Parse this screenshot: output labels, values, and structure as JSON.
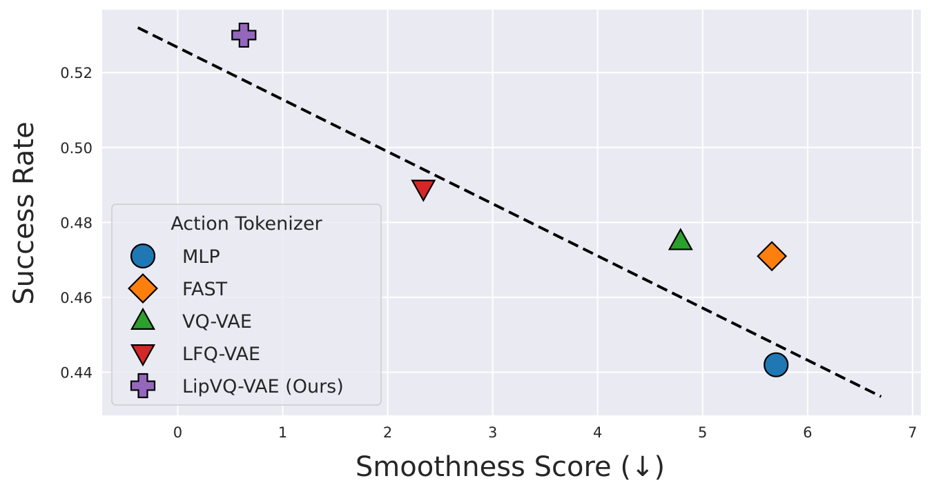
{
  "chart_data": {
    "type": "scatter",
    "title": "",
    "xlabel": "Smoothness Score (↓)",
    "ylabel": "Success Rate",
    "xlim": [
      -0.72,
      7.08
    ],
    "ylim": [
      0.4285,
      0.5368
    ],
    "grid": true,
    "x_ticks": [
      0,
      1,
      2,
      3,
      4,
      5,
      6,
      7
    ],
    "y_ticks": [
      0.44,
      0.46,
      0.48,
      0.5,
      0.52
    ],
    "x_tick_labels": [
      "0",
      "1",
      "2",
      "3",
      "4",
      "5",
      "6",
      "7"
    ],
    "y_tick_labels": [
      "0.44",
      "0.46",
      "0.48",
      "0.50",
      "0.52"
    ],
    "legend": {
      "title": "Action Tokenizer",
      "placement": "lower-left"
    },
    "series": [
      {
        "name": "MLP",
        "marker": "circle",
        "color": "#1f77b4",
        "x": 5.7,
        "y": 0.442
      },
      {
        "name": "FAST",
        "marker": "diamond",
        "color": "#ff7f0e",
        "x": 5.66,
        "y": 0.471
      },
      {
        "name": "VQ-VAE",
        "marker": "triangle-up",
        "color": "#2ca02c",
        "x": 4.79,
        "y": 0.475
      },
      {
        "name": "LFQ-VAE",
        "marker": "triangle-down",
        "color": "#d62728",
        "x": 2.34,
        "y": 0.489
      },
      {
        "name": "LipVQ-VAE (Ours)",
        "marker": "plus",
        "color": "#9467bd",
        "x": 0.63,
        "y": 0.53
      }
    ],
    "trendline": {
      "style": "dashed",
      "color": "#000000",
      "points": [
        [
          -0.38,
          0.532
        ],
        [
          6.7,
          0.4335
        ]
      ]
    }
  }
}
